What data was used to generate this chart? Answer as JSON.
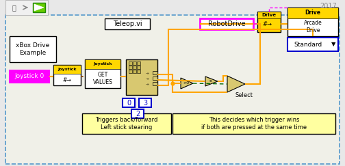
{
  "bg_color": "#f0f0e8",
  "border_color": "#5599cc",
  "fig_bg": "#e8e8e8",
  "title_year": "2017",
  "main_label": "xBox Drive\nExample",
  "teleop_label": "Teleop.vi",
  "robotdrive_label": "RobotDrive",
  "joystick0_label": "Joystick 0",
  "note1": "Triggers back/forward\nLeft stick stearing",
  "note2": "This decides which trigger wins\nif both are pressed at the same time",
  "orange": "#FFA500",
  "yellow": "#FFD700",
  "magenta": "#FF00FF",
  "blue_box": "#0000CC",
  "dark_green": "#006600",
  "light_yellow": "#FFFFA0",
  "tan": "#D8C870",
  "brown_wire": "#8B4000",
  "white": "#FFFFFF",
  "black": "#000000",
  "gray": "#999999",
  "toolbar_bg": "#f0f0f0"
}
